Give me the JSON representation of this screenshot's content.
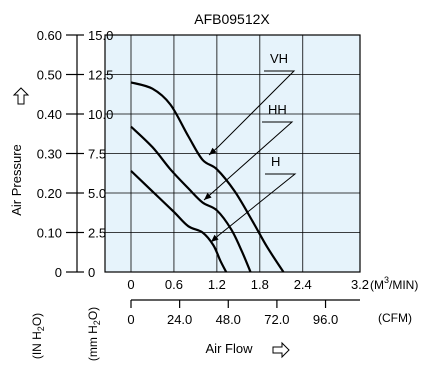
{
  "chart_data": {
    "type": "line",
    "title": "AFB09512X",
    "ylabel": "Air Pressure",
    "xlabel": "Air Flow",
    "y_unit_in": "(IN H2O)",
    "y_unit_mm": "(mm H2O)",
    "x_unit_m3": "(M3/MIN)",
    "x_unit_cfm": "(CFM)",
    "xlim": [
      0,
      3.2
    ],
    "ylim_mm": [
      0,
      15.0
    ],
    "ylim_in": [
      0,
      0.6
    ],
    "x_ticks_m3": [
      "0",
      "0.6",
      "1.2",
      "1.8",
      "2.4",
      "3.2"
    ],
    "x_ticks_cfm": [
      "0",
      "24.0",
      "48.0",
      "72.0",
      "96.0"
    ],
    "y_ticks_mm": [
      "0",
      "2.5",
      "5.0",
      "7.5",
      "10.0",
      "12.5",
      "15.0"
    ],
    "y_ticks_in": [
      "0",
      "0.10",
      "0.20",
      "0.30",
      "0.40",
      "0.50",
      "0.60"
    ],
    "grid": true,
    "series": [
      {
        "name": "VH",
        "x": [
          0,
          0.3,
          0.55,
          0.8,
          1.0,
          1.2,
          1.45,
          1.7,
          1.9,
          2.13
        ],
        "y": [
          12.0,
          11.6,
          10.6,
          8.6,
          7.1,
          6.5,
          5.1,
          3.2,
          1.6,
          0
        ]
      },
      {
        "name": "HH",
        "x": [
          0,
          0.3,
          0.55,
          0.8,
          1.0,
          1.2,
          1.4,
          1.55,
          1.67
        ],
        "y": [
          9.2,
          7.9,
          6.5,
          5.3,
          4.4,
          3.9,
          2.7,
          1.3,
          0
        ]
      },
      {
        "name": "H",
        "x": [
          0,
          0.3,
          0.6,
          0.8,
          1.0,
          1.15,
          1.25,
          1.33
        ],
        "y": [
          6.4,
          5.1,
          3.8,
          2.9,
          2.5,
          1.7,
          0.7,
          0
        ]
      }
    ]
  }
}
